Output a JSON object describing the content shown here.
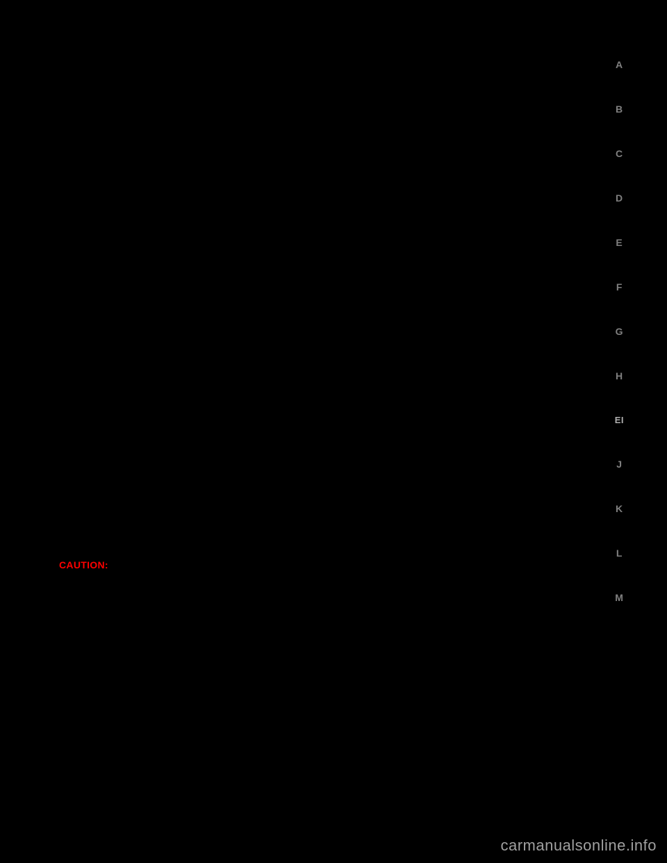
{
  "sideNav": {
    "items": [
      {
        "label": "A",
        "active": false
      },
      {
        "label": "B",
        "active": false
      },
      {
        "label": "C",
        "active": false
      },
      {
        "label": "D",
        "active": false
      },
      {
        "label": "E",
        "active": false
      },
      {
        "label": "F",
        "active": false
      },
      {
        "label": "G",
        "active": false
      },
      {
        "label": "H",
        "active": false
      },
      {
        "label": "EI",
        "active": true
      },
      {
        "label": "J",
        "active": false
      },
      {
        "label": "K",
        "active": false
      },
      {
        "label": "L",
        "active": false
      },
      {
        "label": "M",
        "active": false
      }
    ]
  },
  "caution": {
    "label": "CAUTION:"
  },
  "watermark": {
    "text": "carmanualsonline.info"
  },
  "colors": {
    "background": "#000000",
    "navText": "#808080",
    "navActiveText": "#b0b0b0",
    "cautionText": "#ff0000",
    "watermarkText": "#a0a0a0"
  }
}
